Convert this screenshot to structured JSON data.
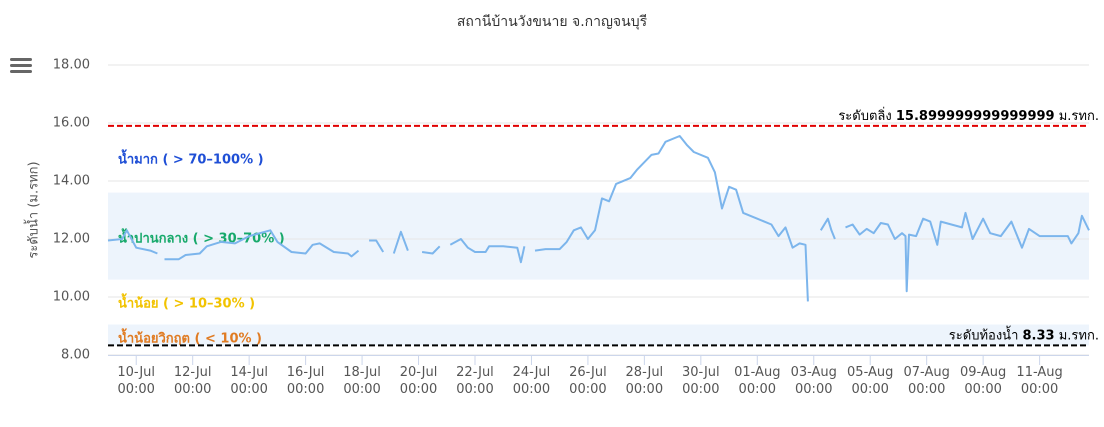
{
  "chart_data": {
    "type": "line",
    "title": "สถานีบ้านวังขนาย จ.กาญจนบุรี",
    "y_axis_label": "ระดับน้ำ (ม.รทก)",
    "color": "#7cb5ec",
    "grid": true,
    "ylim": [
      8,
      18
    ],
    "yticks": [
      {
        "value": 8,
        "label": "8.00"
      },
      {
        "value": 10,
        "label": "10.00"
      },
      {
        "value": 12,
        "label": "12.00"
      },
      {
        "value": 14,
        "label": "14.00"
      },
      {
        "value": 16,
        "label": "16.00"
      },
      {
        "value": 18,
        "label": "18.00"
      }
    ],
    "xlim": [
      "09-Jul 00:00",
      "12-Aug 18:00"
    ],
    "xticks": [
      "10-Jul 00:00",
      "12-Jul 00:00",
      "14-Jul 00:00",
      "16-Jul 00:00",
      "18-Jul 00:00",
      "20-Jul 00:00",
      "22-Jul 00:00",
      "24-Jul 00:00",
      "26-Jul 00:00",
      "28-Jul 00:00",
      "30-Jul 00:00",
      "01-Aug 00:00",
      "03-Aug 00:00",
      "05-Aug 00:00",
      "07-Aug 00:00",
      "09-Aug 00:00",
      "11-Aug 00:00"
    ],
    "plot_bands": [
      {
        "from": 10.6,
        "to": 13.6,
        "color": "#edf4fc"
      },
      {
        "from": 8.33,
        "to": 9.05,
        "color": "#edf4fc"
      }
    ],
    "plot_lines": [
      {
        "value": 15.9,
        "value_label": "15.899999999999999",
        "label_prefix": "ระดับตลิ่ง",
        "label_suffix": "ม.รทก.",
        "color": "#e00000"
      },
      {
        "value": 8.33,
        "label_prefix": "ระดับท้องน้ำ",
        "label_suffix": "ม.รทก.",
        "color": "#000000"
      }
    ],
    "zone_labels": [
      {
        "text": "น้ำมาก ( > 70–100% )",
        "color": "#1f4fd6"
      },
      {
        "text": "น้ำปานกลาง ( > 30–70% )",
        "color": "#17a96b"
      },
      {
        "text": "น้ำน้อย ( > 10–30% )",
        "color": "#f2c300"
      },
      {
        "text": "น้ำน้อยวิกฤต ( < 10% )",
        "color": "#e07b22"
      }
    ],
    "x": [
      "09-Jul 00:00",
      "09-Jul 12:00",
      "09-Jul 16:00",
      "10-Jul 00:00",
      "10-Jul 12:00",
      "10-Jul 18:00",
      "10-Jul 21:00",
      "11-Jul 00:00",
      "11-Jul 12:00",
      "11-Jul 18:00",
      "12-Jul 06:00",
      "12-Jul 12:00",
      "13-Jul 00:00",
      "13-Jul 12:00",
      "14-Jul 00:00",
      "14-Jul 18:00",
      "15-Jul 00:00",
      "15-Jul 12:00",
      "16-Jul 00:00",
      "16-Jul 06:00",
      "16-Jul 12:00",
      "17-Jul 00:00",
      "17-Jul 12:00",
      "17-Jul 15:00",
      "17-Jul 21:00",
      "18-Jul 03:00",
      "18-Jul 06:00",
      "18-Jul 12:00",
      "18-Jul 18:00",
      "18-Jul 21:00",
      "19-Jul 03:00",
      "19-Jul 09:00",
      "19-Jul 15:00",
      "20-Jul 00:00",
      "20-Jul 03:00",
      "20-Jul 12:00",
      "20-Jul 18:00",
      "20-Jul 21:00",
      "21-Jul 03:00",
      "21-Jul 12:00",
      "21-Jul 18:00",
      "22-Jul 00:00",
      "22-Jul 09:00",
      "22-Jul 12:00",
      "23-Jul 00:00",
      "23-Jul 12:00",
      "23-Jul 15:00",
      "23-Jul 18:00",
      "24-Jul 00:00",
      "24-Jul 03:00",
      "24-Jul 12:00",
      "25-Jul 00:00",
      "25-Jul 06:00",
      "25-Jul 12:00",
      "25-Jul 18:00",
      "26-Jul 00:00",
      "26-Jul 06:00",
      "26-Jul 12:00",
      "26-Jul 18:00",
      "27-Jul 00:00",
      "27-Jul 12:00",
      "27-Jul 18:00",
      "28-Jul 06:00",
      "28-Jul 12:00",
      "28-Jul 18:00",
      "29-Jul 06:00",
      "29-Jul 12:00",
      "29-Jul 18:00",
      "30-Jul 06:00",
      "30-Jul 12:00",
      "30-Jul 18:00",
      "31-Jul 00:00",
      "31-Jul 06:00",
      "31-Jul 12:00",
      "01-Aug 00:00",
      "01-Aug 12:00",
      "01-Aug 18:00",
      "02-Aug 00:00",
      "02-Aug 06:00",
      "02-Aug 12:00",
      "02-Aug 17:00",
      "02-Aug 19:00",
      "02-Aug 21:00",
      "03-Aug 06:00",
      "03-Aug 12:00",
      "03-Aug 15:00",
      "03-Aug 18:00",
      "03-Aug 21:00",
      "04-Aug 03:00",
      "04-Aug 09:00",
      "04-Aug 15:00",
      "04-Aug 21:00",
      "05-Aug 03:00",
      "05-Aug 09:00",
      "05-Aug 15:00",
      "05-Aug 21:00",
      "06-Aug 03:00",
      "06-Aug 06:00",
      "06-Aug 07:00",
      "06-Aug 09:00",
      "06-Aug 15:00",
      "06-Aug 21:00",
      "07-Aug 03:00",
      "07-Aug 09:00",
      "07-Aug 12:00",
      "07-Aug 21:00",
      "08-Aug 06:00",
      "08-Aug 09:00",
      "08-Aug 15:00",
      "09-Aug 00:00",
      "09-Aug 06:00",
      "09-Aug 15:00",
      "10-Aug 00:00",
      "10-Aug 09:00",
      "10-Aug 15:00",
      "11-Aug 00:00",
      "12-Aug 00:00",
      "12-Aug 03:00",
      "12-Aug 09:00",
      "12-Aug 12:00",
      "12-Aug 18:00"
    ],
    "values": [
      11.95,
      12.0,
      12.3,
      11.7,
      11.6,
      11.5,
      null,
      11.3,
      11.3,
      11.45,
      11.5,
      11.75,
      11.9,
      11.85,
      12.1,
      12.3,
      11.9,
      11.55,
      11.5,
      11.8,
      11.85,
      11.55,
      11.5,
      11.4,
      11.6,
      null,
      11.95,
      11.95,
      11.55,
      null,
      11.5,
      12.25,
      11.6,
      null,
      11.55,
      11.5,
      11.75,
      null,
      11.8,
      12.0,
      11.7,
      11.55,
      11.55,
      11.75,
      11.75,
      11.7,
      11.2,
      11.75,
      null,
      11.6,
      11.65,
      11.65,
      11.9,
      12.3,
      12.4,
      12.0,
      12.3,
      13.4,
      13.3,
      13.9,
      14.1,
      14.4,
      14.9,
      14.95,
      15.35,
      15.55,
      15.25,
      15.0,
      14.8,
      14.3,
      13.05,
      13.8,
      13.7,
      12.9,
      12.7,
      12.5,
      12.1,
      12.4,
      11.7,
      11.85,
      11.8,
      9.85,
      null,
      12.3,
      12.7,
      12.3,
      12.0,
      null,
      12.4,
      12.5,
      12.15,
      12.35,
      12.2,
      12.55,
      12.5,
      12.0,
      12.2,
      12.1,
      10.2,
      12.15,
      12.1,
      12.7,
      12.6,
      11.8,
      12.6,
      12.5,
      12.4,
      12.9,
      12.0,
      12.7,
      12.2,
      12.1,
      12.6,
      11.7,
      12.35,
      12.1,
      12.1,
      11.85,
      12.2,
      12.8,
      12.3
    ]
  }
}
